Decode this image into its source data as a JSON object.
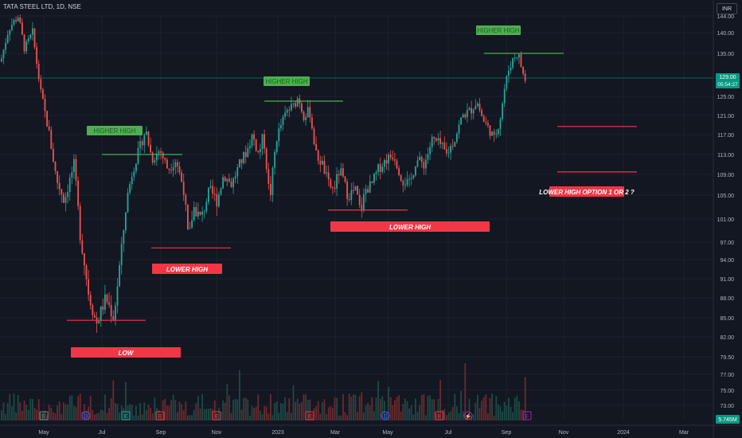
{
  "header": {
    "symbol_title": "TATA STEEL LTD, 1D, NSE",
    "currency_label": "INR"
  },
  "colors": {
    "background": "#131722",
    "up": "#26a69a",
    "down": "#ef5350",
    "volume_up": "#1d4a45",
    "volume_down": "#6b2a2e",
    "label_green_bg": "#4caf50",
    "label_green_text": "#1f5e20",
    "label_red_bg": "#f23645",
    "label_red_text": "#ffffff",
    "price_tag_bg": "#089981",
    "axis_text": "#b2b5be",
    "gridline": "#1e222d"
  },
  "chart_data": {
    "type": "candlestick",
    "title": "TATA STEEL LTD, 1D, NSE",
    "y_axis": {
      "unit": "INR",
      "ticks": [
        "144.00",
        "140.00",
        "135.00",
        "129.00",
        "125.00",
        "121.00",
        "117.00",
        "113.00",
        "109.00",
        "105.00",
        "101.00",
        "97.00",
        "94.00",
        "91.00",
        "88.00",
        "85.00",
        "82.00",
        "79.50",
        "77.00",
        "75.00",
        "73.00"
      ]
    },
    "x_axis": {
      "ticks": [
        "May",
        "Jul",
        "Sep",
        "Nov",
        "2023",
        "Mar",
        "May",
        "Jul",
        "Sep",
        "Nov",
        "2024",
        "Mar"
      ]
    },
    "current_price": {
      "value": "129.00",
      "countdown": "05:54:27"
    },
    "volume_label": "5.745M",
    "price_path": [
      [
        0,
        133
      ],
      [
        10,
        141
      ],
      [
        22,
        144
      ],
      [
        30,
        136
      ],
      [
        40,
        140
      ],
      [
        50,
        126
      ],
      [
        60,
        118
      ],
      [
        70,
        108
      ],
      [
        80,
        104
      ],
      [
        92,
        111
      ],
      [
        100,
        98
      ],
      [
        110,
        89
      ],
      [
        120,
        84
      ],
      [
        132,
        88
      ],
      [
        142,
        85
      ],
      [
        152,
        96
      ],
      [
        158,
        104
      ],
      [
        166,
        110
      ],
      [
        172,
        113
      ],
      [
        182,
        118
      ],
      [
        190,
        112
      ],
      [
        200,
        114
      ],
      [
        210,
        110
      ],
      [
        220,
        112
      ],
      [
        230,
        106
      ],
      [
        236,
        97
      ],
      [
        242,
        103
      ],
      [
        252,
        101
      ],
      [
        262,
        106
      ],
      [
        272,
        104
      ],
      [
        280,
        109
      ],
      [
        290,
        107
      ],
      [
        300,
        111
      ],
      [
        310,
        114
      ],
      [
        316,
        117
      ],
      [
        324,
        113
      ],
      [
        330,
        117
      ],
      [
        338,
        104
      ],
      [
        346,
        116
      ],
      [
        352,
        119
      ],
      [
        360,
        122
      ],
      [
        368,
        123
      ],
      [
        374,
        125
      ],
      [
        380,
        121
      ],
      [
        388,
        122
      ],
      [
        396,
        113
      ],
      [
        404,
        111
      ],
      [
        412,
        107
      ],
      [
        418,
        106
      ],
      [
        426,
        110
      ],
      [
        436,
        105
      ],
      [
        446,
        106
      ],
      [
        452,
        102
      ],
      [
        458,
        106
      ],
      [
        466,
        107
      ],
      [
        474,
        110
      ],
      [
        484,
        112
      ],
      [
        494,
        113
      ],
      [
        504,
        108
      ],
      [
        514,
        107
      ],
      [
        522,
        112
      ],
      [
        532,
        111
      ],
      [
        542,
        116
      ],
      [
        552,
        115
      ],
      [
        560,
        113
      ],
      [
        570,
        116
      ],
      [
        580,
        121
      ],
      [
        590,
        122
      ],
      [
        598,
        124
      ],
      [
        606,
        120
      ],
      [
        614,
        118
      ],
      [
        620,
        116
      ],
      [
        628,
        121
      ],
      [
        632,
        126
      ],
      [
        638,
        131
      ],
      [
        644,
        134
      ],
      [
        650,
        135
      ],
      [
        656,
        130
      ],
      [
        660,
        128
      ]
    ],
    "levels": [
      {
        "price": 113.0,
        "x_range": [
          128,
          229
        ],
        "color": "green"
      },
      {
        "price": 124.0,
        "x_range": [
          332,
          431
        ],
        "color": "green"
      },
      {
        "price": 135.0,
        "x_range": [
          608,
          708
        ],
        "color": "green"
      },
      {
        "price": 96.0,
        "x_range": [
          190,
          290
        ],
        "color": "red"
      },
      {
        "price": 102.5,
        "x_range": [
          412,
          512
        ],
        "color": "red"
      },
      {
        "price": 84.6,
        "x_range": [
          84,
          183
        ],
        "color": "red"
      },
      {
        "price": 118.7,
        "x_range": [
          700,
          800
        ],
        "color": "red"
      },
      {
        "price": 109.5,
        "x_range": [
          700,
          800
        ],
        "color": "red"
      }
    ],
    "current_level_line": {
      "price": 129.0
    },
    "annotations": [
      {
        "text": "HIGHER HIGH",
        "style": "green"
      },
      {
        "text": "HIGHER HIGH",
        "style": "green"
      },
      {
        "text": "HIGHER HIGH",
        "style": "green"
      },
      {
        "text": "LOWER HIGH",
        "style": "red"
      },
      {
        "text": "LOWER HIGH",
        "style": "red"
      },
      {
        "text": "LOW",
        "style": "red"
      },
      {
        "text": "LOWER HIGH OPTION 1 OR 2 ?",
        "style": "red"
      }
    ],
    "event_markers": [
      {
        "glyph": "E",
        "type": "earnings"
      },
      {
        "glyph": "D",
        "type": "dividend"
      },
      {
        "glyph": "E",
        "type": "earnings"
      },
      {
        "glyph": "E",
        "type": "earnings"
      },
      {
        "glyph": "E",
        "type": "earnings"
      },
      {
        "glyph": "E",
        "type": "earnings"
      },
      {
        "glyph": "D",
        "type": "dividend"
      },
      {
        "glyph": "E",
        "type": "earnings"
      },
      {
        "glyph": "⚡",
        "type": "split"
      },
      {
        "glyph": "E",
        "type": "earnings_upcoming"
      }
    ]
  }
}
